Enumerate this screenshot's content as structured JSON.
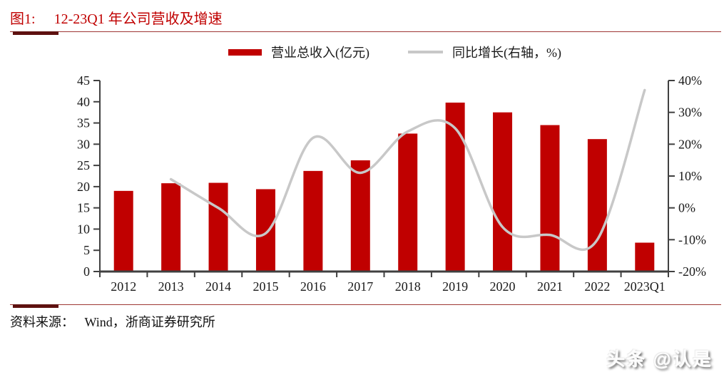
{
  "figure": {
    "label": "图1:",
    "title": "12-23Q1 年公司营收及增速",
    "source_label": "资料来源：",
    "source": "Wind，浙商证券研究所"
  },
  "watermark": "头条 @认是",
  "colors": {
    "bar": "#C00000",
    "line": "#C8C8C8",
    "axis": "#404040",
    "tick_text": "#1a1a1a",
    "title_red": "#C00000",
    "rule_thick": "#5E1110",
    "rule_thin": "#9E3734"
  },
  "chart_data": {
    "type": "bar",
    "subtype": "bar-and-line-combo",
    "categories": [
      "2012",
      "2013",
      "2014",
      "2015",
      "2016",
      "2017",
      "2018",
      "2019",
      "2020",
      "2021",
      "2022",
      "2023Q1"
    ],
    "series": [
      {
        "name": "营业总收入(亿元)",
        "type": "bar",
        "axis": "left",
        "color": "#C00000",
        "values": [
          19.0,
          20.8,
          20.9,
          19.4,
          23.7,
          26.2,
          32.5,
          39.8,
          37.5,
          34.5,
          31.2,
          6.8
        ]
      },
      {
        "name": "同比增长(右轴，%)",
        "type": "line",
        "axis": "right",
        "color": "#C8C8C8",
        "smooth": true,
        "values": [
          null,
          9,
          0,
          -8,
          22,
          11,
          24,
          25,
          -6,
          -8.5,
          -10,
          37
        ]
      }
    ],
    "left_axis": {
      "min": 0,
      "max": 45,
      "step": 5,
      "suffix": "",
      "tick_labels": [
        "0",
        "5",
        "10",
        "15",
        "20",
        "25",
        "30",
        "35",
        "40",
        "45"
      ]
    },
    "right_axis": {
      "min": -20,
      "max": 40,
      "step": 10,
      "suffix": "%",
      "tick_labels": [
        "-20%",
        "-10%",
        "0%",
        "10%",
        "20%",
        "30%",
        "40%"
      ]
    },
    "grid": false,
    "legend_position": "top-center"
  }
}
